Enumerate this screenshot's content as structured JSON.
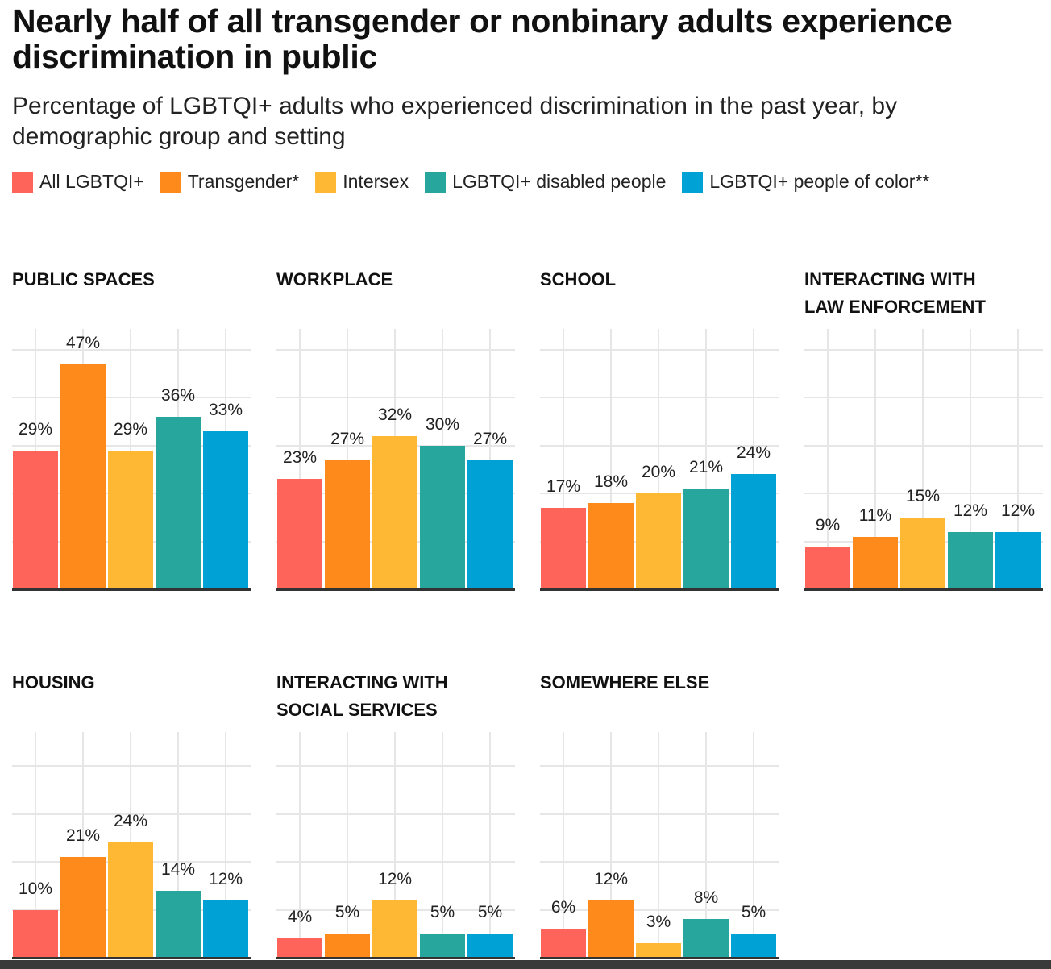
{
  "title": "Nearly half of all transgender or nonbinary adults experience discrimination in public",
  "subtitle": "Percentage of LGBTQI+ adults who experienced discrimination in the past year, by demographic group and setting",
  "chart_data": {
    "type": "bar",
    "categories": [
      "All LGBTQI+",
      "Transgender*",
      "Intersex",
      "LGBTQI+ disabled people",
      "LGBTQI+ people of color**"
    ],
    "colors": [
      "#FF645A",
      "#FF8A1C",
      "#FFB833",
      "#26A69D",
      "#00A1D5"
    ],
    "unit": "%",
    "grid": true,
    "legend_placement": "top-left",
    "panels": [
      {
        "title": [
          "PUBLIC SPACES"
        ],
        "values": [
          29,
          47,
          29,
          36,
          33
        ]
      },
      {
        "title": [
          "WORKPLACE"
        ],
        "values": [
          23,
          27,
          32,
          30,
          27
        ]
      },
      {
        "title": [
          "SCHOOL"
        ],
        "values": [
          17,
          18,
          20,
          21,
          24
        ]
      },
      {
        "title": [
          "INTERACTING WITH",
          "LAW ENFORCEMENT"
        ],
        "values": [
          9,
          11,
          15,
          12,
          12
        ]
      },
      {
        "title": [
          "HOUSING"
        ],
        "values": [
          10,
          21,
          24,
          14,
          12
        ]
      },
      {
        "title": [
          "INTERACTING WITH",
          "SOCIAL SERVICES"
        ],
        "values": [
          4,
          5,
          12,
          5,
          5
        ]
      },
      {
        "title": [
          "SOMEWHERE ELSE"
        ],
        "values": [
          6,
          12,
          3,
          8,
          5
        ]
      }
    ]
  }
}
